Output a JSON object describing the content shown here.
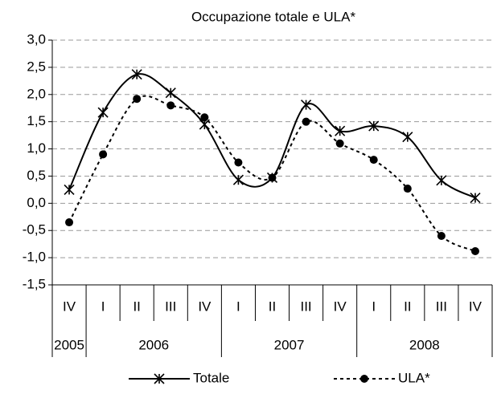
{
  "chart_data": {
    "type": "line",
    "title": "Occupazione totale e ULA*",
    "categories": [
      "IV",
      "I",
      "II",
      "III",
      "IV",
      "I",
      "II",
      "III",
      "IV",
      "I",
      "II",
      "III",
      "IV"
    ],
    "years": [
      "2005",
      "2006",
      "2007",
      "2008"
    ],
    "series": [
      {
        "name": "Totale",
        "color": "#000000",
        "marker": "asterisk",
        "dash": "solid",
        "values": [
          0.25,
          1.67,
          2.37,
          2.03,
          1.45,
          0.43,
          0.47,
          1.81,
          1.33,
          1.42,
          1.22,
          0.42,
          0.1
        ]
      },
      {
        "name": "ULA*",
        "color": "#000000",
        "marker": "circle",
        "dash": "dashed",
        "values": [
          -0.35,
          0.9,
          1.92,
          1.8,
          1.58,
          0.75,
          0.47,
          1.5,
          1.1,
          0.8,
          0.27,
          -0.6,
          -0.88
        ]
      }
    ],
    "ylim": [
      -1.5,
      3
    ],
    "yticks": [
      {
        "value": -1.5,
        "label": "-1,5"
      },
      {
        "value": -1,
        "label": "-1,0"
      },
      {
        "value": -0.5,
        "label": "-0,5"
      },
      {
        "value": 0,
        "label": "0,0"
      },
      {
        "value": 0.5,
        "label": "0,5"
      },
      {
        "value": 1,
        "label": "1,0"
      },
      {
        "value": 1.5,
        "label": "1,5"
      },
      {
        "value": 2,
        "label": "2,0"
      },
      {
        "value": 2.5,
        "label": "2,5"
      },
      {
        "value": 3,
        "label": "3,0"
      }
    ],
    "grid": true
  }
}
